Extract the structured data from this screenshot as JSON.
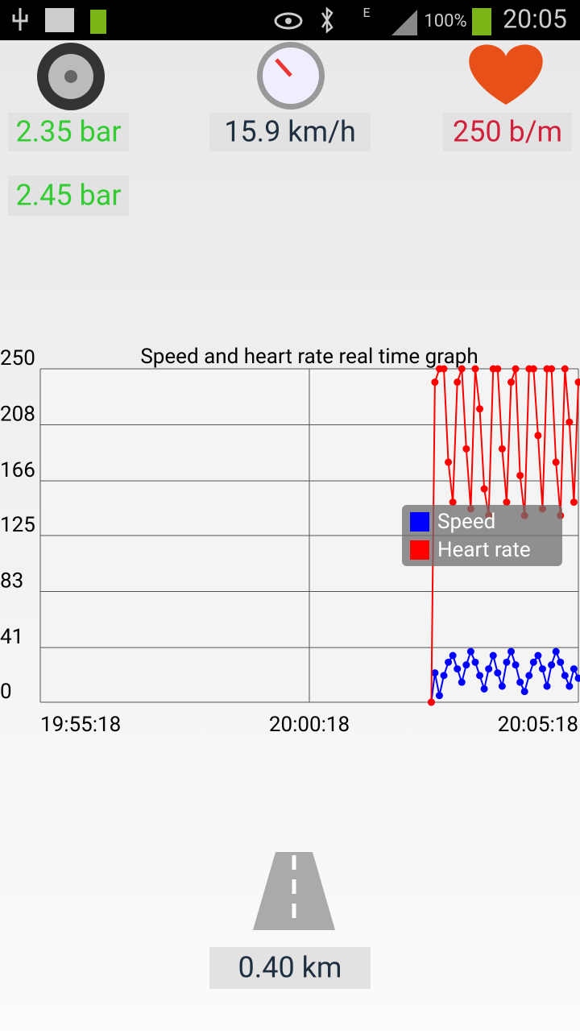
{
  "status_bar": {
    "network": "E",
    "battery": "100%",
    "time": "20:05"
  },
  "readings": {
    "pressure_front": "2.35 bar",
    "pressure_rear": "2.45 bar",
    "speed": "15.9 km/h",
    "heart_rate": "250 b/m",
    "distance": "0.40 km"
  },
  "chart_data": {
    "type": "line",
    "title": "Speed and heart rate real time graph",
    "x": [
      "20:02:34",
      "20:02:38",
      "20:02:43",
      "20:02:48",
      "20:02:53",
      "20:02:58",
      "20:03:03",
      "20:03:08",
      "20:03:13",
      "20:03:18",
      "20:03:23",
      "20:03:28",
      "20:03:33",
      "20:03:38",
      "20:03:43",
      "20:03:48",
      "20:03:53",
      "20:03:58",
      "20:04:03",
      "20:04:08",
      "20:04:13",
      "20:04:18",
      "20:04:23",
      "20:04:28",
      "20:04:33",
      "20:04:38",
      "20:04:43",
      "20:04:48",
      "20:04:53",
      "20:04:58",
      "20:05:03",
      "20:05:08",
      "20:05:13",
      "20:05:18"
    ],
    "series": [
      {
        "name": "Speed",
        "color": "#0000ff",
        "values": [
          0,
          22,
          5,
          20,
          30,
          35,
          25,
          15,
          28,
          38,
          30,
          20,
          10,
          25,
          35,
          22,
          12,
          30,
          38,
          28,
          15,
          8,
          20,
          30,
          35,
          25,
          12,
          28,
          38,
          30,
          20,
          12,
          25,
          18
        ]
      },
      {
        "name": "Heart rate",
        "color": "#ff0000",
        "values": [
          0,
          240,
          250,
          250,
          180,
          150,
          240,
          250,
          190,
          145,
          250,
          220,
          160,
          140,
          250,
          250,
          190,
          150,
          240,
          250,
          170,
          140,
          250,
          250,
          200,
          145,
          250,
          250,
          180,
          140,
          250,
          210,
          150,
          240
        ]
      }
    ],
    "xlim": [
      "19:55:18",
      "20:05:18"
    ],
    "xticks": [
      "19:55:18",
      "20:00:18",
      "20:05:18"
    ],
    "ylim": [
      0,
      250
    ],
    "yticks": [
      0,
      41,
      83,
      125,
      166,
      208,
      250
    ],
    "grid": true
  }
}
